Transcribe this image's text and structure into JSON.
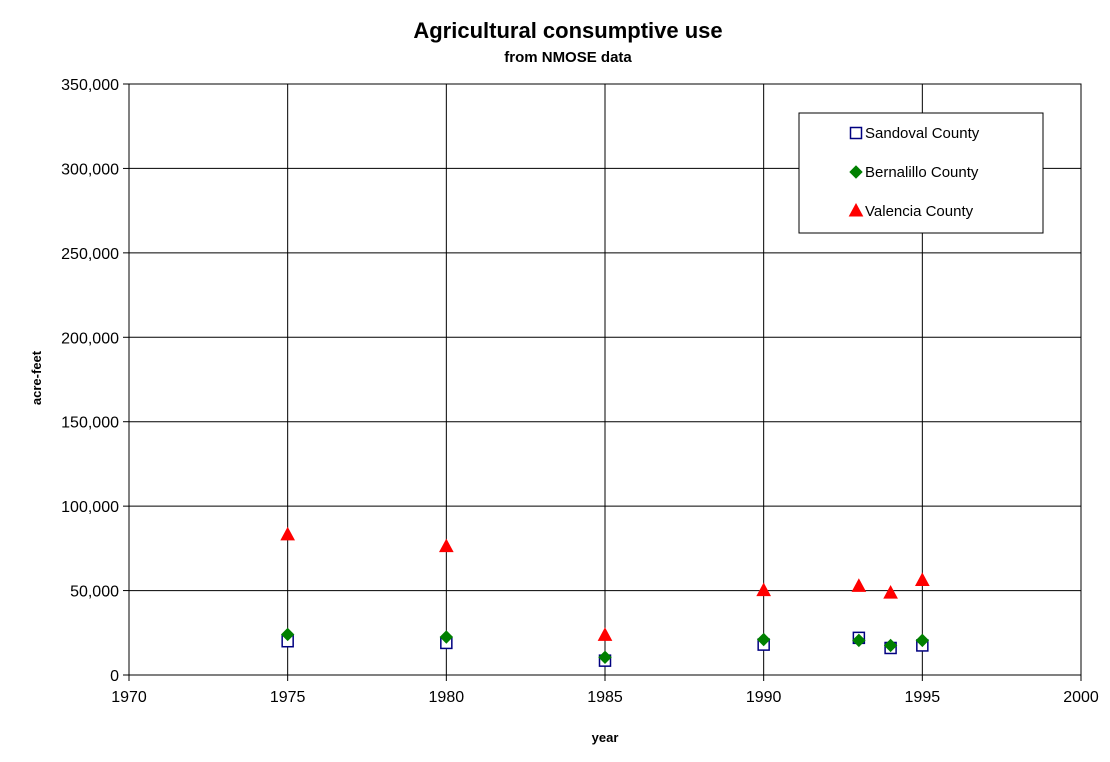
{
  "chart_data": {
    "type": "scatter",
    "title": "Agricultural consumptive use",
    "subtitle": "from NMOSE data",
    "xlabel": "year",
    "ylabel": "acre-feet",
    "xlim": [
      1970,
      2000
    ],
    "ylim": [
      0,
      350000
    ],
    "x_ticks": [
      1970,
      1975,
      1980,
      1985,
      1990,
      1995,
      2000
    ],
    "x_tick_labels": [
      "1970",
      "1975",
      "1980",
      "1985",
      "1990",
      "1995",
      "2000"
    ],
    "y_ticks": [
      0,
      50000,
      100000,
      150000,
      200000,
      250000,
      300000,
      350000
    ],
    "y_tick_labels": [
      "0",
      "50,000",
      "100,000",
      "150,000",
      "200,000",
      "250,000",
      "300,000",
      "350,000"
    ],
    "grid": true,
    "legend_position": "top-right",
    "series": [
      {
        "name": "Sandoval County",
        "marker": "square-open",
        "color": "#000080",
        "x": [
          1975,
          1980,
          1985,
          1990,
          1993,
          1994,
          1995
        ],
        "y": [
          20000,
          19000,
          8500,
          18000,
          22000,
          16000,
          17500
        ]
      },
      {
        "name": "Bernalillo County",
        "marker": "diamond",
        "color": "#008000",
        "x": [
          1975,
          1980,
          1985,
          1990,
          1993,
          1994,
          1995
        ],
        "y": [
          24000,
          22500,
          10500,
          21000,
          20500,
          17500,
          20500
        ]
      },
      {
        "name": "Valencia County",
        "marker": "triangle",
        "color": "#ff0000",
        "x": [
          1975,
          1980,
          1985,
          1990,
          1993,
          1994,
          1995
        ],
        "y": [
          83000,
          76000,
          23500,
          50000,
          52500,
          48500,
          56000
        ]
      }
    ]
  }
}
